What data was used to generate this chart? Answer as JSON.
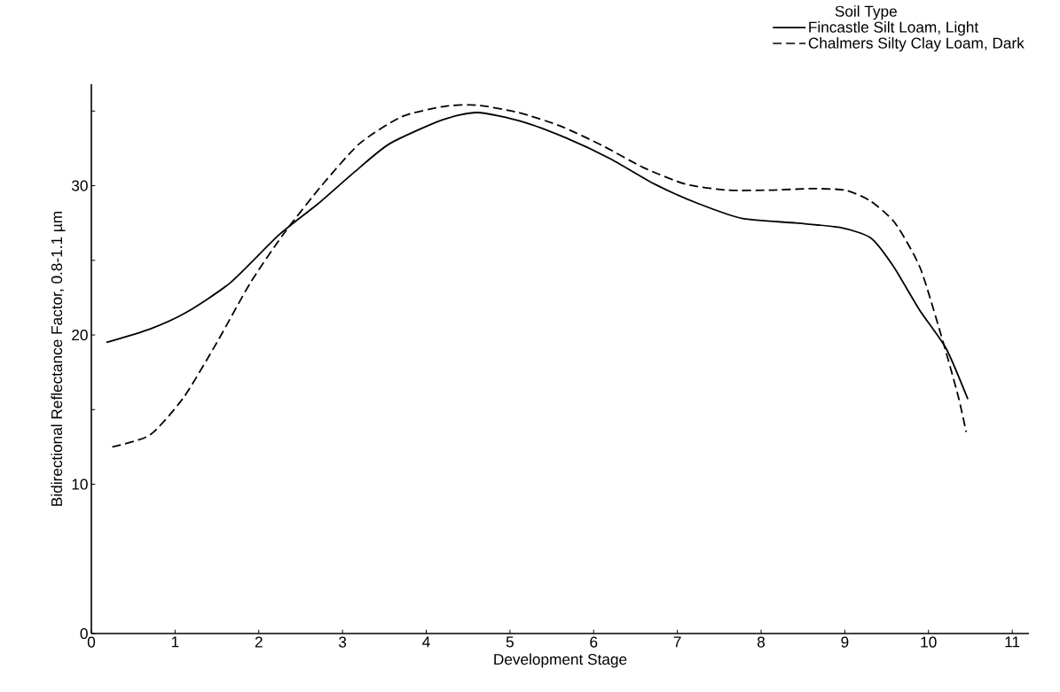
{
  "chart_data": {
    "type": "line",
    "xlabel": "Development Stage",
    "ylabel": "Bidirectional Reflectance Factor, 0.8-1.1 µm",
    "legend_title": "Soil Type",
    "legend": "top right",
    "grid": false,
    "marker": "none",
    "xlim": [
      0,
      11.2
    ],
    "ylim": [
      0,
      36.8
    ],
    "xticks": [
      0,
      1,
      2,
      3,
      4,
      5,
      6,
      7,
      8,
      9,
      10,
      11
    ],
    "yticks": [
      0,
      10,
      {
        "value": 15,
        "label": null
      },
      20,
      {
        "value": 25,
        "label": null
      },
      30,
      {
        "value": 35,
        "label": null
      }
    ],
    "series": [
      {
        "name": "Fincastle Silt Loam, Light",
        "color": "#000000",
        "line_style": "solid",
        "x": [
          0.18,
          0.7,
          1.13,
          1.66,
          2.24,
          2.71,
          3.14,
          3.56,
          4.19,
          4.61,
          5.14,
          5.67,
          6.2,
          6.73,
          7.25,
          7.78,
          8.42,
          8.94,
          9.31,
          9.58,
          9.89,
          10.21,
          10.47
        ],
        "values": [
          19.5,
          20.4,
          21.5,
          23.5,
          26.7,
          28.8,
          30.9,
          32.8,
          34.4,
          34.9,
          34.3,
          33.2,
          31.8,
          30.1,
          28.8,
          27.8,
          27.5,
          27.2,
          26.5,
          24.6,
          21.7,
          19.1,
          15.7
        ]
      },
      {
        "name": "Chalmers Silty Clay Loam, Dark",
        "color": "#000000",
        "line_style": "dashed",
        "x": [
          0.25,
          0.7,
          1.1,
          1.5,
          1.9,
          2.3,
          2.75,
          3.2,
          3.7,
          4.2,
          4.6,
          5.1,
          5.6,
          6.1,
          6.6,
          7.1,
          7.6,
          8.1,
          8.6,
          9.0,
          9.3,
          9.6,
          9.9,
          10.15,
          10.35,
          10.45
        ],
        "values": [
          12.5,
          13.3,
          15.8,
          19.5,
          23.5,
          26.8,
          30,
          32.8,
          34.6,
          35.3,
          35.4,
          34.9,
          34,
          32.7,
          31.2,
          30.1,
          29.7,
          29.7,
          29.8,
          29.7,
          29,
          27.5,
          24.5,
          20,
          16,
          13.5
        ]
      }
    ]
  }
}
